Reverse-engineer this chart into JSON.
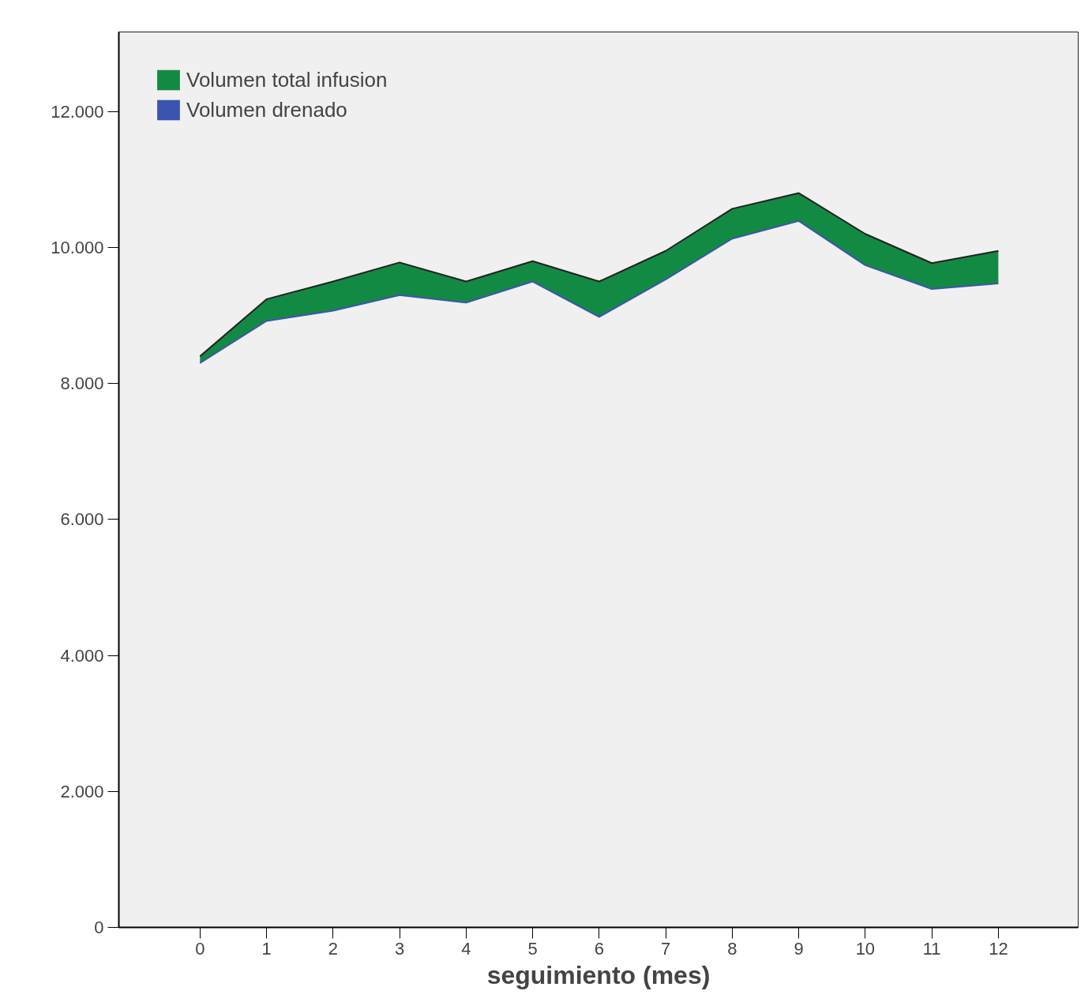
{
  "chart_data": {
    "type": "area",
    "xlabel": "seguimiento (mes)",
    "x": [
      0,
      1,
      2,
      3,
      4,
      5,
      6,
      7,
      8,
      9,
      10,
      11,
      12
    ],
    "series": [
      {
        "name": "Volumen total infusion",
        "color": "#138a43",
        "values": [
          8400,
          9240,
          9500,
          9780,
          9500,
          9800,
          9500,
          9950,
          10570,
          10800,
          10200,
          9770,
          9950
        ]
      },
      {
        "name": "Volumen drenado",
        "type": "line",
        "color": "#3a55b0",
        "values": [
          8300,
          8920,
          9070,
          9300,
          9190,
          9500,
          8980,
          9530,
          10130,
          10390,
          9740,
          9390,
          9470
        ]
      }
    ],
    "xlim": [
      -1.22,
      13.2
    ],
    "xticks": [
      0,
      1,
      2,
      3,
      4,
      5,
      6,
      7,
      8,
      9,
      10,
      11,
      12
    ],
    "ylim": [
      0,
      13170
    ],
    "yticks": [
      0,
      {
        "value": 2000,
        "label": "2.000"
      },
      {
        "value": 4000,
        "label": "4.000"
      },
      {
        "value": 6000,
        "label": "6.000"
      },
      {
        "value": 8000,
        "label": "8.000"
      },
      {
        "value": 10000,
        "label": "10.000"
      },
      {
        "value": 12000,
        "label": "12.000"
      }
    ],
    "grid": false,
    "legend": "top left",
    "marker": "none"
  }
}
